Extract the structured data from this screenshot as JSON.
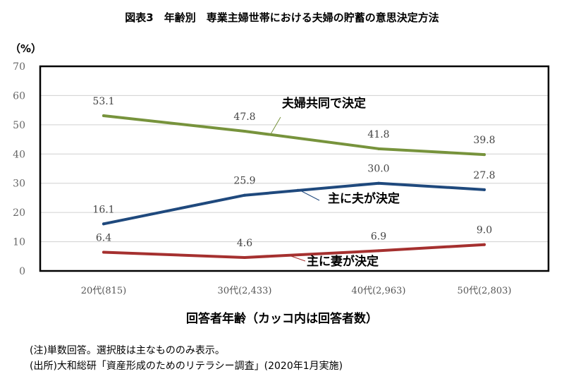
{
  "chart_data": {
    "type": "line",
    "title": "図表3　年齢別　専業主婦世帯における夫婦の貯蓄の意思決定方法",
    "ylabel": "（%）",
    "xlabel": "回答者年齢（カッコ内は回答者数）",
    "ylim": [
      0,
      70
    ],
    "yticks": [
      "0",
      "10",
      "20",
      "30",
      "40",
      "50",
      "60",
      "70"
    ],
    "categories": [
      "20代(815)",
      "30代(2,433)",
      "40代(2,963)",
      "50代(2,803)"
    ],
    "grid": true,
    "series": [
      {
        "name": "夫婦共同で決定",
        "values": [
          53.1,
          47.8,
          41.8,
          39.8
        ],
        "labels": [
          "53.1",
          "47.8",
          "41.8",
          "39.8"
        ],
        "color": "#77933c"
      },
      {
        "name": "主に夫が決定",
        "values": [
          16.1,
          25.9,
          30.0,
          27.8
        ],
        "labels": [
          "16.1",
          "25.9",
          "30.0",
          "27.8"
        ],
        "color": "#1f497d"
      },
      {
        "name": "主に妻が決定",
        "values": [
          6.4,
          4.6,
          6.9,
          9.0
        ],
        "labels": [
          "6.4",
          "4.6",
          "6.9",
          "9.0"
        ],
        "color": "#a5302f"
      }
    ]
  },
  "notes": {
    "note1": "(注)単数回答。選択肢は主なもののみ表示。",
    "note2": "(出所)大和総研「資産形成のためのリテラシー調査」(2020年1月実施)"
  }
}
